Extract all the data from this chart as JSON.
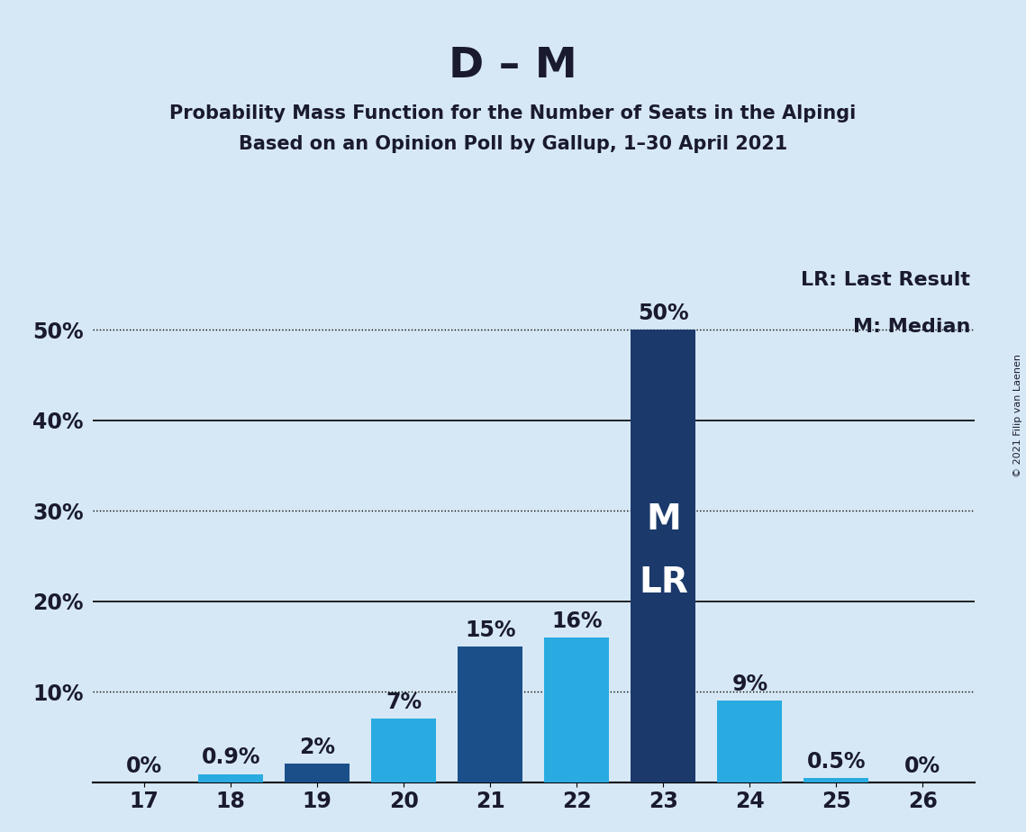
{
  "title": "D – M",
  "subtitle1": "Probability Mass Function for the Number of Seats in the Alpingi",
  "subtitle2": "Based on an Opinion Poll by Gallup, 1–30 April 2021",
  "copyright": "© 2021 Filip van Laenen",
  "categories": [
    17,
    18,
    19,
    20,
    21,
    22,
    23,
    24,
    25,
    26
  ],
  "values": [
    0.0,
    0.9,
    2.0,
    7.0,
    15.0,
    16.0,
    50.0,
    9.0,
    0.5,
    0.0
  ],
  "bar_colors": [
    "#29ABE2",
    "#29ABE2",
    "#1B4F8A",
    "#29ABE2",
    "#1B4F8A",
    "#29ABE2",
    "#1B3A6B",
    "#29ABE2",
    "#29ABE2",
    "#1B3A6B"
  ],
  "labels": [
    "0%",
    "0.9%",
    "2%",
    "7%",
    "15%",
    "16%",
    "50%",
    "9%",
    "0.5%",
    "0%"
  ],
  "median_bar_index": 6,
  "legend_lr": "LR: Last Result",
  "legend_m": "M: Median",
  "background_color": "#D6E8F5",
  "ylim": [
    0,
    57
  ],
  "yticks": [
    0,
    10,
    20,
    30,
    40,
    50
  ],
  "ytick_labels": [
    "",
    "10%",
    "20%",
    "30%",
    "40%",
    "50%"
  ],
  "solid_lines": [
    20,
    40
  ],
  "dotted_lines": [
    10,
    30,
    50
  ],
  "title_fontsize": 34,
  "subtitle_fontsize": 15,
  "tick_fontsize": 17,
  "bar_label_fontsize": 17,
  "legend_fontsize": 16,
  "ml_fontsize": 28,
  "bar_width": 0.75
}
